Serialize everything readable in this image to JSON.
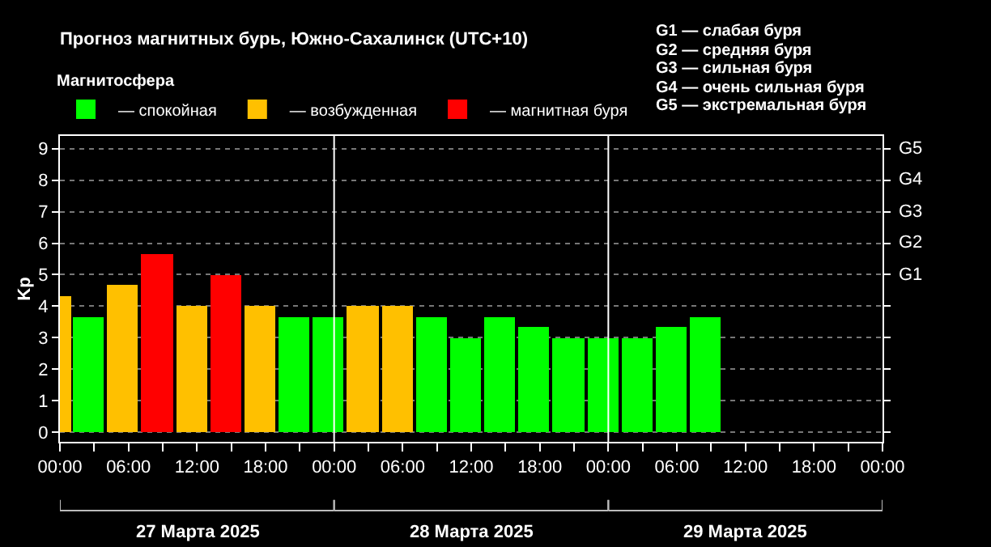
{
  "chart_data": {
    "type": "bar",
    "title": "Прогноз магнитных бурь, Южно-Сахалинск (UTC+10)",
    "ylabel": "Kp",
    "legend_title": "Магнитосфера",
    "x": [
      "2025-03-27T00:30",
      "2025-03-27T02:30",
      "2025-03-27T05:30",
      "2025-03-27T08:30",
      "2025-03-27T11:30",
      "2025-03-27T14:30",
      "2025-03-27T17:30",
      "2025-03-27T20:30",
      "2025-03-27T23:30",
      "2025-03-28T02:30",
      "2025-03-28T05:30",
      "2025-03-28T08:30",
      "2025-03-28T11:30",
      "2025-03-28T14:30",
      "2025-03-28T17:30",
      "2025-03-28T20:30",
      "2025-03-28T23:30",
      "2025-03-29T02:30",
      "2025-03-29T05:30",
      "2025-03-29T08:30"
    ],
    "series": [
      {
        "name": "— спокойная",
        "color": "#00ff00",
        "values": [
          null,
          3.67,
          null,
          null,
          null,
          null,
          null,
          3.67,
          3.67,
          null,
          null,
          3.67,
          3.0,
          3.67,
          3.33,
          3.0,
          3.0,
          3.0,
          3.33,
          3.67
        ]
      },
      {
        "name": "— возбужденная",
        "color": "#ffc000",
        "values": [
          4.33,
          null,
          4.67,
          null,
          4.0,
          null,
          4.0,
          null,
          null,
          4.0,
          4.0,
          null,
          null,
          null,
          null,
          null,
          null,
          null,
          null,
          null
        ]
      },
      {
        "name": "— магнитная буря",
        "color": "#ff0000",
        "values": [
          null,
          null,
          null,
          5.67,
          null,
          5.0,
          null,
          null,
          null,
          null,
          null,
          null,
          null,
          null,
          null,
          null,
          null,
          null,
          null,
          null
        ]
      }
    ],
    "stacked": true,
    "xlim": [
      "2025-03-27T00:00",
      "2025-03-30T00:00"
    ],
    "xticks": [
      {
        "value": "2025-03-27T00:00",
        "label": "00:00"
      },
      {
        "value": "2025-03-27T03:00",
        "label": null
      },
      {
        "value": "2025-03-27T06:00",
        "label": "06:00"
      },
      {
        "value": "2025-03-27T09:00",
        "label": null
      },
      {
        "value": "2025-03-27T12:00",
        "label": "12:00"
      },
      {
        "value": "2025-03-27T15:00",
        "label": null
      },
      {
        "value": "2025-03-27T18:00",
        "label": "18:00"
      },
      {
        "value": "2025-03-27T21:00",
        "label": null
      },
      {
        "value": "2025-03-28T00:00",
        "label": "00:00"
      },
      {
        "value": "2025-03-28T03:00",
        "label": null
      },
      {
        "value": "2025-03-28T06:00",
        "label": "06:00"
      },
      {
        "value": "2025-03-28T09:00",
        "label": null
      },
      {
        "value": "2025-03-28T12:00",
        "label": "12:00"
      },
      {
        "value": "2025-03-28T15:00",
        "label": null
      },
      {
        "value": "2025-03-28T18:00",
        "label": "18:00"
      },
      {
        "value": "2025-03-28T21:00",
        "label": null
      },
      {
        "value": "2025-03-29T00:00",
        "label": "00:00"
      },
      {
        "value": "2025-03-29T03:00",
        "label": null
      },
      {
        "value": "2025-03-29T06:00",
        "label": "06:00"
      },
      {
        "value": "2025-03-29T09:00",
        "label": null
      },
      {
        "value": "2025-03-29T12:00",
        "label": "12:00"
      },
      {
        "value": "2025-03-29T15:00",
        "label": null
      },
      {
        "value": "2025-03-29T18:00",
        "label": "18:00"
      },
      {
        "value": "2025-03-29T21:00",
        "label": null
      },
      {
        "value": "2025-03-30T00:00",
        "label": "00:00"
      }
    ],
    "ylim": [
      -0.3,
      9.4
    ],
    "yticks": [
      0,
      1,
      2,
      3,
      4,
      5,
      6,
      7,
      8,
      9
    ],
    "grid": "y",
    "legend": "top left",
    "ref_lines": [
      {
        "axis": "x",
        "value": "2025-03-28T00:00",
        "color": "#ffffff"
      },
      {
        "axis": "x",
        "value": "2025-03-29T00:00",
        "color": "#ffffff"
      }
    ],
    "annotations": [
      "G1 — слабая буря",
      "G2 — средняя буря",
      "G3 — сильная буря",
      "G4 — очень сильная буря",
      "G5 — экстремальная буря",
      "G1",
      "G2",
      "G3",
      "G4",
      "G5",
      "27 Марта 2025",
      "28 Марта 2025",
      "29 Марта 2025"
    ]
  }
}
